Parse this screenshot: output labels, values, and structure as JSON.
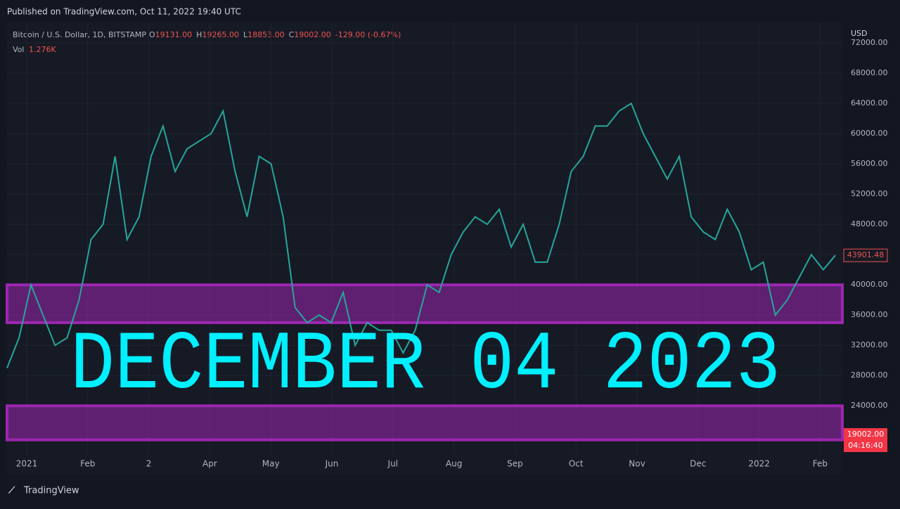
{
  "chart_data": {
    "type": "line",
    "published": "Published on TradingView.com, Oct 11, 2022 19:40 UTC",
    "symbol": "Bitcoin / U.S. Dollar, 1D, BITSTAMP",
    "ohlc": [
      {
        "label": "O",
        "value": "19131.00"
      },
      {
        "label": "H",
        "value": "19265.00"
      },
      {
        "label": "L",
        "value": "18853.00"
      },
      {
        "label": "C",
        "value": "19002.00"
      }
    ],
    "change": "-129.00 (-0.67%)",
    "volume_label": "Vol",
    "volume": "1.276K",
    "currency": "USD",
    "overlay_text": "DECEMBER 04 2023",
    "brand": "TradingView",
    "color": "#26a69a",
    "values": [
      29000,
      33000,
      40000,
      36000,
      32000,
      33000,
      38000,
      46000,
      48000,
      57000,
      46000,
      49000,
      57000,
      61000,
      55000,
      58000,
      59000,
      60000,
      63000,
      55000,
      49000,
      57000,
      56000,
      49000,
      37000,
      35000,
      36000,
      35000,
      39000,
      32000,
      35000,
      34000,
      34000,
      31000,
      34000,
      40000,
      39000,
      44000,
      47000,
      49000,
      48000,
      50000,
      45000,
      48000,
      43000,
      43000,
      48000,
      55000,
      57000,
      61000,
      61000,
      63000,
      64000,
      60000,
      57000,
      54000,
      57000,
      49000,
      47000,
      46000,
      50000,
      47000,
      42000,
      43000,
      36000,
      38000,
      41000,
      44000,
      42000,
      43901.48
    ],
    "zones": [
      {
        "from": 35000,
        "to": 40000
      },
      {
        "from": 19500,
        "to": 24000
      }
    ],
    "zone_color": "#9c27b0",
    "ylim": [
      17700,
      74700
    ],
    "yticks": [
      {
        "value": 24000,
        "label": "24000.00"
      },
      {
        "value": 28000,
        "label": "28000.00"
      },
      {
        "value": 32000,
        "label": "32000.00"
      },
      {
        "value": 36000,
        "label": "36000.00"
      },
      {
        "value": 40000,
        "label": "40000.00"
      },
      {
        "value": 44000,
        "label": "44000.00"
      },
      {
        "value": 48000,
        "label": "48000.00"
      },
      {
        "value": 52000,
        "label": "52000.00"
      },
      {
        "value": 56000,
        "label": "56000.00"
      },
      {
        "value": 60000,
        "label": "60000.00"
      },
      {
        "value": 64000,
        "label": "64000.00"
      },
      {
        "value": 68000,
        "label": "68000.00"
      },
      {
        "value": 72000,
        "label": "72000.00"
      }
    ],
    "last_price": {
      "value": 43901.48,
      "label": "43901.48"
    },
    "current_price": {
      "value": 19002,
      "label": "19002.00"
    },
    "countdown": "04:16:40",
    "xtick_labels": [
      "2021",
      "Feb",
      "2",
      "Apr",
      "May",
      "Jun",
      "Jul",
      "Aug",
      "Sep",
      "Oct",
      "Nov",
      "Dec",
      "2022",
      "Feb"
    ]
  }
}
